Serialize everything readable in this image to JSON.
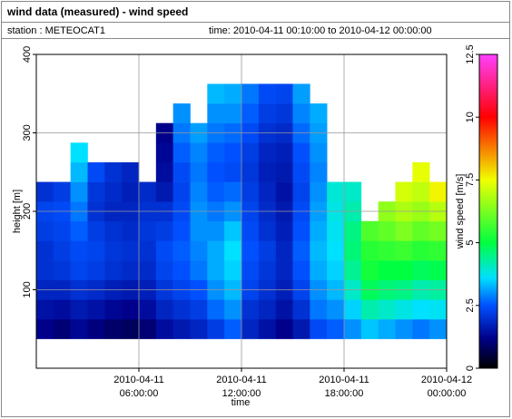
{
  "chart_data": {
    "type": "heatmap",
    "title": "wind data (measured) - wind speed",
    "station": "station : METEOCAT1",
    "time_range": "time: 2010-04-11 00:10:00 to 2010-04-12 00:00:00",
    "x_label": "time",
    "y_label": "height [m]",
    "colorbar_label": "wind speed [m/s]",
    "x": [
      "2010-04-11 00:00:00",
      "2010-04-11 01:00:00",
      "2010-04-11 02:00:00",
      "2010-04-11 03:00:00",
      "2010-04-11 04:00:00",
      "2010-04-11 05:00:00",
      "2010-04-11 06:00:00",
      "2010-04-11 07:00:00",
      "2010-04-11 08:00:00",
      "2010-04-11 09:00:00",
      "2010-04-11 10:00:00",
      "2010-04-11 11:00:00",
      "2010-04-11 12:00:00",
      "2010-04-11 13:00:00",
      "2010-04-11 14:00:00",
      "2010-04-11 15:00:00",
      "2010-04-11 16:00:00",
      "2010-04-11 17:00:00",
      "2010-04-11 18:00:00",
      "2010-04-11 19:00:00",
      "2010-04-11 20:00:00",
      "2010-04-11 21:00:00",
      "2010-04-11 22:00:00",
      "2010-04-11 23:00:00"
    ],
    "heights": [
      50,
      75,
      100,
      125,
      150,
      175,
      200,
      225,
      250,
      275,
      300,
      325,
      350
    ],
    "bin_height": 25,
    "values": [
      [
        1.2,
        1.5,
        1.8,
        2.0,
        2.0,
        2.2,
        2.3,
        2.0,
        null,
        null,
        null,
        null,
        null
      ],
      [
        1.0,
        1.4,
        1.8,
        2.1,
        2.2,
        2.3,
        2.4,
        2.2,
        null,
        null,
        null,
        null,
        null
      ],
      [
        1.3,
        1.6,
        2.0,
        2.3,
        2.4,
        2.6,
        2.8,
        3.0,
        3.3,
        3.6,
        null,
        null,
        null
      ],
      [
        1.1,
        1.5,
        1.9,
        2.2,
        2.3,
        2.2,
        2.0,
        2.1,
        2.4,
        null,
        null,
        null,
        null
      ],
      [
        0.9,
        1.3,
        1.7,
        2.0,
        2.1,
        2.0,
        1.8,
        1.9,
        2.0,
        null,
        null,
        null,
        null
      ],
      [
        0.8,
        1.2,
        1.6,
        1.9,
        2.0,
        1.9,
        1.8,
        1.7,
        1.8,
        null,
        null,
        null,
        null
      ],
      [
        1.0,
        1.4,
        1.7,
        1.9,
        2.0,
        2.1,
        2.0,
        1.9,
        null,
        null,
        null,
        null,
        null
      ],
      [
        1.4,
        1.8,
        2.1,
        2.3,
        2.4,
        2.2,
        2.0,
        1.6,
        1.4,
        1.3,
        1.2,
        null,
        null
      ],
      [
        1.6,
        2.0,
        2.3,
        2.5,
        2.6,
        2.5,
        2.4,
        2.3,
        2.4,
        2.6,
        2.8,
        3.0,
        null
      ],
      [
        1.8,
        2.2,
        2.5,
        2.8,
        2.9,
        3.0,
        3.0,
        2.9,
        2.8,
        2.9,
        3.1,
        null,
        null
      ],
      [
        2.2,
        2.7,
        3.0,
        3.2,
        3.2,
        3.0,
        2.8,
        2.6,
        2.5,
        2.6,
        2.8,
        3.0,
        3.3
      ],
      [
        2.6,
        3.0,
        3.3,
        3.5,
        3.6,
        3.4,
        3.0,
        2.7,
        2.4,
        2.5,
        2.7,
        3.0,
        3.2
      ],
      [
        1.8,
        2.0,
        2.3,
        2.4,
        2.5,
        2.4,
        2.3,
        2.2,
        2.1,
        2.2,
        2.4,
        2.6,
        2.8
      ],
      [
        1.5,
        1.8,
        2.0,
        2.1,
        2.2,
        2.0,
        1.9,
        1.8,
        1.7,
        1.8,
        2.0,
        2.2,
        2.4
      ],
      [
        1.2,
        1.5,
        1.7,
        1.8,
        1.8,
        1.7,
        1.6,
        1.5,
        1.6,
        1.7,
        1.9,
        2.1,
        2.3
      ],
      [
        1.6,
        2.0,
        2.3,
        2.5,
        2.6,
        2.5,
        2.4,
        2.3,
        2.4,
        2.5,
        2.7,
        2.9,
        3.1
      ],
      [
        2.4,
        2.8,
        3.0,
        3.2,
        3.3,
        3.2,
        3.1,
        3.0,
        2.9,
        3.0,
        3.1,
        3.2,
        null
      ],
      [
        2.6,
        3.0,
        3.3,
        3.5,
        3.6,
        3.7,
        3.8,
        3.9,
        null,
        null,
        null,
        null,
        null
      ],
      [
        3.0,
        3.5,
        4.0,
        4.4,
        4.6,
        4.5,
        4.2,
        4.0,
        null,
        null,
        null,
        null,
        null
      ],
      [
        3.4,
        4.2,
        4.8,
        5.2,
        5.4,
        5.8,
        null,
        null,
        null,
        null,
        null,
        null,
        null
      ],
      [
        3.2,
        4.0,
        4.6,
        5.0,
        5.5,
        6.0,
        6.5,
        null,
        null,
        null,
        null,
        null,
        null
      ],
      [
        3.0,
        3.8,
        4.5,
        5.0,
        5.6,
        6.3,
        6.8,
        7.2,
        null,
        null,
        null,
        null,
        null
      ],
      [
        2.8,
        3.6,
        4.2,
        4.8,
        5.4,
        6.0,
        6.6,
        7.0,
        7.4,
        null,
        null,
        null,
        null
      ],
      [
        3.0,
        3.7,
        4.3,
        4.9,
        5.5,
        6.2,
        6.9,
        7.6,
        null,
        null,
        null,
        null,
        null
      ]
    ],
    "xlim": [
      "2010-04-11 00:00:00",
      "2010-04-12 00:00:00"
    ],
    "xticks": [
      "2010-04-11 06:00:00",
      "2010-04-11 12:00:00",
      "2010-04-11 18:00:00",
      "2010-04-12 00:00:00"
    ],
    "ylim": [
      0,
      400
    ],
    "yticks": [
      100,
      200,
      300,
      400
    ],
    "clim": [
      0,
      12.5
    ],
    "cticks": [
      0,
      2.5,
      5,
      7.5,
      10,
      12.5
    ],
    "colorscale": [
      [
        0,
        "#000000"
      ],
      [
        1.2,
        "#00008b"
      ],
      [
        2.5,
        "#0050ff"
      ],
      [
        3.6,
        "#00e0ff"
      ],
      [
        5,
        "#00ff40"
      ],
      [
        7.5,
        "#f0ff00"
      ],
      [
        10,
        "#ff0000"
      ],
      [
        12.5,
        "#ff40ff"
      ]
    ],
    "grid": true
  }
}
